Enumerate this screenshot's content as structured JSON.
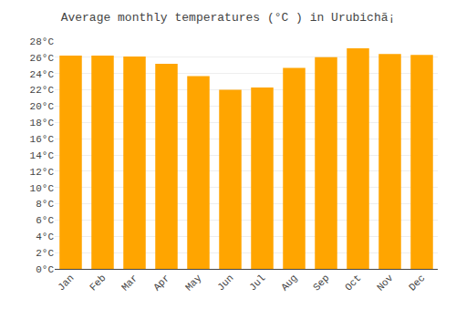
{
  "chart_data": {
    "type": "bar",
    "title": "Average monthly temperatures (°C ) in Urubichã¡",
    "categories": [
      "Jan",
      "Feb",
      "Mar",
      "Apr",
      "May",
      "Jun",
      "Jul",
      "Aug",
      "Sep",
      "Oct",
      "Nov",
      "Dec"
    ],
    "values": [
      26.2,
      26.2,
      26.1,
      25.2,
      23.7,
      22.0,
      22.3,
      24.7,
      26.0,
      27.1,
      26.4,
      26.3
    ],
    "color": "#FFA500",
    "ylim": [
      0,
      28
    ],
    "yticks": [
      {
        "value": 0,
        "label": "0°C"
      },
      {
        "value": 2,
        "label": "2°C"
      },
      {
        "value": 4,
        "label": "4°C"
      },
      {
        "value": 6,
        "label": "6°C"
      },
      {
        "value": 8,
        "label": "8°C"
      },
      {
        "value": 10,
        "label": "10°C"
      },
      {
        "value": 12,
        "label": "12°C"
      },
      {
        "value": 14,
        "label": "14°C"
      },
      {
        "value": 16,
        "label": "16°C"
      },
      {
        "value": 18,
        "label": "18°C"
      },
      {
        "value": 20,
        "label": "20°C"
      },
      {
        "value": 22,
        "label": "22°C"
      },
      {
        "value": 24,
        "label": "24°C"
      },
      {
        "value": 26,
        "label": "26°C"
      },
      {
        "value": 28,
        "label": "28°C"
      }
    ],
    "grid": true
  }
}
